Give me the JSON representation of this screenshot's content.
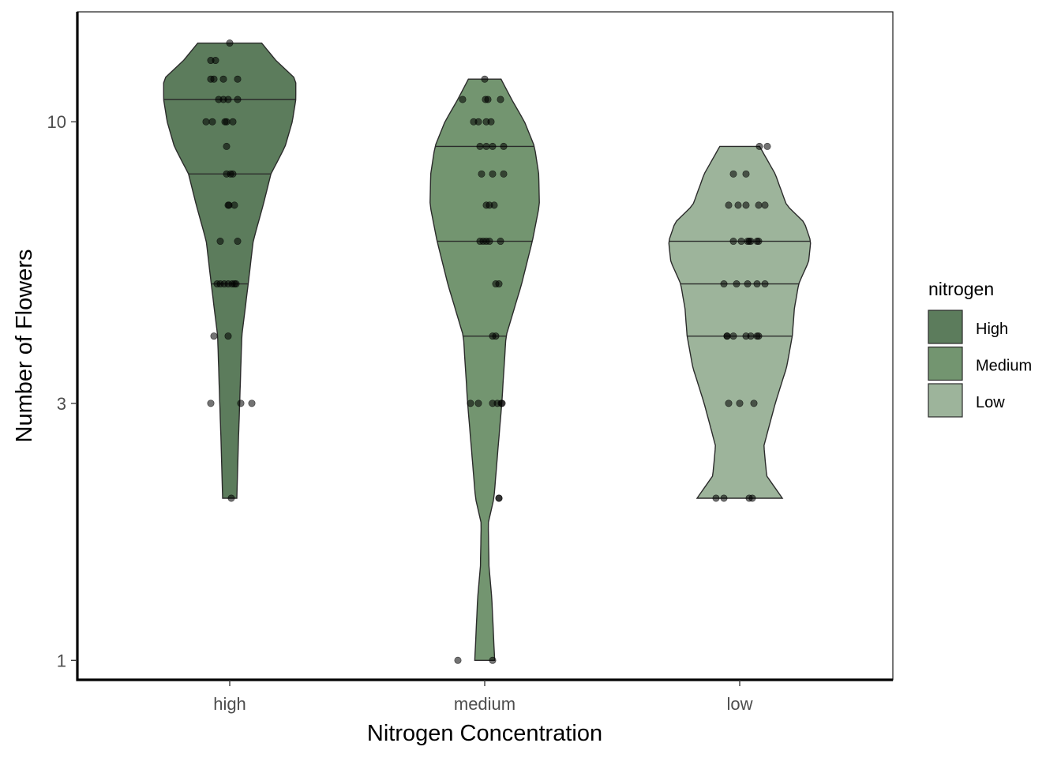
{
  "chart_data": {
    "type": "violin",
    "xlabel": "Nitrogen Concentration",
    "ylabel": "Number of Flowers",
    "y_scale": "log10",
    "ylim": [
      0.92,
      16
    ],
    "y_ticks": [
      {
        "value": 1,
        "label": "1"
      },
      {
        "value": 3,
        "label": "3"
      },
      {
        "value": 10,
        "label": "10"
      }
    ],
    "categories": [
      "high",
      "medium",
      "low"
    ],
    "grid": false,
    "legend": {
      "title": "nitrogen",
      "placement": "right",
      "entries": [
        {
          "label": "High",
          "color": "#5c7c5c"
        },
        {
          "label": "Medium",
          "color": "#739570"
        },
        {
          "label": "Low",
          "color": "#9db49b"
        }
      ]
    },
    "series": [
      {
        "category": "high",
        "color": "#5c7c5c",
        "quantiles": [
          5,
          8,
          11
        ],
        "range": [
          2,
          14
        ],
        "profile": [
          [
            2,
            0.1
          ],
          [
            2.5,
            0.12
          ],
          [
            3,
            0.14
          ],
          [
            4,
            0.17
          ],
          [
            5,
            0.26
          ],
          [
            6,
            0.33
          ],
          [
            7,
            0.47
          ],
          [
            8,
            0.58
          ],
          [
            9,
            0.78
          ],
          [
            10,
            0.88
          ],
          [
            11,
            0.93
          ],
          [
            12,
            0.93
          ],
          [
            13,
            0.65
          ],
          [
            14,
            0.45
          ]
        ],
        "points": [
          [
            -0.24,
            13
          ],
          [
            -0.18,
            13
          ],
          [
            -0.08,
            12
          ],
          [
            -0.24,
            12
          ],
          [
            -0.2,
            12
          ],
          [
            0.1,
            12
          ],
          [
            -0.08,
            11
          ],
          [
            -0.14,
            11
          ],
          [
            -0.02,
            11
          ],
          [
            0.1,
            11
          ],
          [
            -0.3,
            10
          ],
          [
            -0.22,
            10
          ],
          [
            -0.06,
            10
          ],
          [
            0.04,
            10
          ],
          [
            -0.04,
            10
          ],
          [
            -0.04,
            9
          ],
          [
            0.04,
            8
          ],
          [
            0.01,
            8
          ],
          [
            -0.04,
            8
          ],
          [
            -0.01,
            7
          ],
          [
            0.06,
            7
          ],
          [
            -0.02,
            7
          ],
          [
            -0.12,
            6
          ],
          [
            0.1,
            6
          ],
          [
            -0.16,
            5
          ],
          [
            -0.12,
            5
          ],
          [
            0.06,
            5
          ],
          [
            -0.07,
            5
          ],
          [
            0.03,
            5
          ],
          [
            0.08,
            5
          ],
          [
            -0.02,
            5
          ],
          [
            -0.02,
            4
          ],
          [
            -0.2,
            4
          ],
          [
            -0.24,
            3
          ],
          [
            0.14,
            3
          ],
          [
            0.28,
            3
          ],
          [
            0.02,
            2
          ],
          [
            0.0,
            14
          ]
        ]
      },
      {
        "category": "medium",
        "color": "#739570",
        "quantiles": [
          4,
          6,
          9
        ],
        "range": [
          1,
          12
        ],
        "profile": [
          [
            1,
            0.14
          ],
          [
            1.3,
            0.1
          ],
          [
            1.5,
            0.06
          ],
          [
            1.8,
            0.05
          ],
          [
            2,
            0.13
          ],
          [
            2.5,
            0.19
          ],
          [
            3,
            0.24
          ],
          [
            4,
            0.3
          ],
          [
            5,
            0.52
          ],
          [
            6,
            0.67
          ],
          [
            7,
            0.77
          ],
          [
            8,
            0.76
          ],
          [
            9,
            0.7
          ],
          [
            10,
            0.56
          ],
          [
            11,
            0.38
          ],
          [
            12,
            0.23
          ]
        ],
        "points": [
          [
            0.0,
            12
          ],
          [
            0.04,
            11
          ],
          [
            0.01,
            11
          ],
          [
            -0.28,
            11
          ],
          [
            0.2,
            11
          ],
          [
            -0.14,
            10
          ],
          [
            0.08,
            10
          ],
          [
            0.02,
            10
          ],
          [
            -0.08,
            10
          ],
          [
            0.02,
            9
          ],
          [
            0.24,
            9
          ],
          [
            -0.06,
            9
          ],
          [
            0.1,
            9
          ],
          [
            0.24,
            8
          ],
          [
            0.1,
            8
          ],
          [
            -0.04,
            8
          ],
          [
            0.02,
            7
          ],
          [
            0.06,
            7
          ],
          [
            0.12,
            7
          ],
          [
            0.02,
            6
          ],
          [
            -0.02,
            6
          ],
          [
            -0.06,
            6
          ],
          [
            0.06,
            6
          ],
          [
            0.2,
            6
          ],
          [
            0.14,
            5
          ],
          [
            0.18,
            5
          ],
          [
            0.14,
            4
          ],
          [
            0.1,
            4
          ],
          [
            -0.18,
            3
          ],
          [
            0.16,
            3
          ],
          [
            0.1,
            3
          ],
          [
            -0.08,
            3
          ],
          [
            0.18,
            2
          ],
          [
            0.1,
            1
          ],
          [
            -0.34,
            1
          ],
          [
            0.18,
            2
          ],
          [
            0.21,
            3
          ],
          [
            0.22,
            3
          ]
        ]
      },
      {
        "category": "low",
        "color": "#9db49b",
        "quantiles": [
          4,
          5,
          6
        ],
        "range": [
          2,
          9
        ],
        "profile": [
          [
            2,
            0.6
          ],
          [
            2.2,
            0.38
          ],
          [
            2.5,
            0.34
          ],
          [
            3,
            0.5
          ],
          [
            3.5,
            0.66
          ],
          [
            4,
            0.74
          ],
          [
            4.5,
            0.77
          ],
          [
            5,
            0.83
          ],
          [
            5.5,
            0.97
          ],
          [
            6,
            1.0
          ],
          [
            6.5,
            0.91
          ],
          [
            7,
            0.66
          ],
          [
            8,
            0.5
          ],
          [
            9,
            0.28
          ]
        ],
        "points": [
          [
            0.25,
            9
          ],
          [
            0.35,
            9
          ],
          [
            -0.08,
            8
          ],
          [
            0.08,
            8
          ],
          [
            -0.14,
            7
          ],
          [
            0.24,
            7
          ],
          [
            -0.02,
            7
          ],
          [
            0.08,
            7
          ],
          [
            0.32,
            7
          ],
          [
            0.22,
            6
          ],
          [
            0.14,
            6
          ],
          [
            0.12,
            6
          ],
          [
            -0.08,
            6
          ],
          [
            0.02,
            6
          ],
          [
            0.1,
            6
          ],
          [
            0.24,
            6
          ],
          [
            -0.04,
            5
          ],
          [
            0.1,
            5
          ],
          [
            0.22,
            5
          ],
          [
            -0.2,
            5
          ],
          [
            0.32,
            5
          ],
          [
            -0.08,
            4
          ],
          [
            -0.16,
            4
          ],
          [
            0.08,
            4
          ],
          [
            0.14,
            4
          ],
          [
            0.24,
            4
          ],
          [
            0.22,
            4
          ],
          [
            -0.16,
            4
          ],
          [
            0.0,
            3
          ],
          [
            -0.14,
            3
          ],
          [
            0.18,
            3
          ],
          [
            -0.3,
            2
          ],
          [
            -0.2,
            2
          ],
          [
            0.12,
            2
          ],
          [
            0.16,
            2
          ]
        ]
      }
    ]
  }
}
